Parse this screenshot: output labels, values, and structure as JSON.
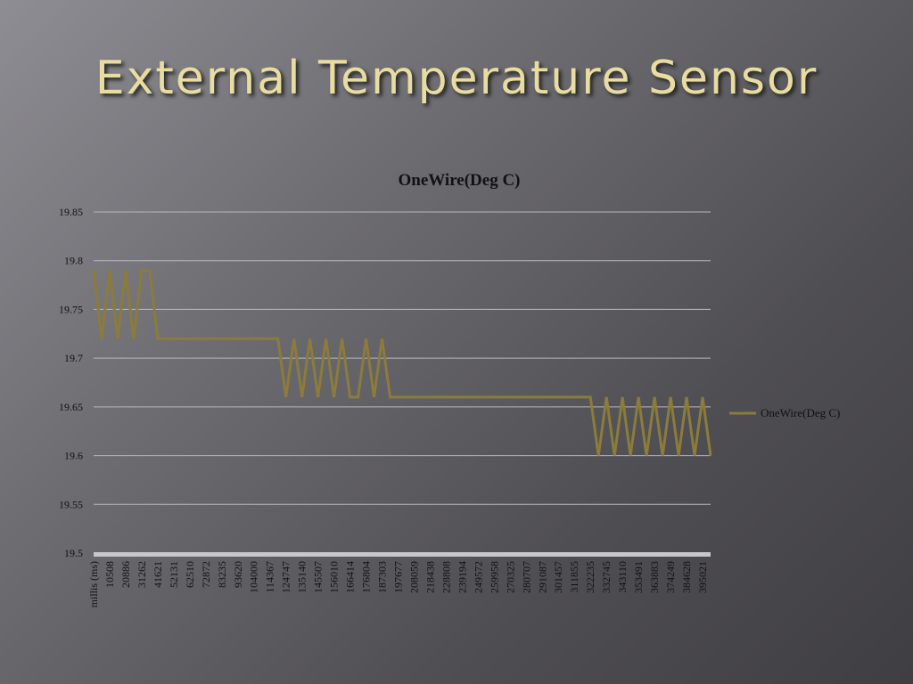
{
  "slide_title": "External Temperature Sensor",
  "chart_data": {
    "type": "line",
    "title": "OneWire(Deg C)",
    "categories": [
      "millis (ms)",
      null,
      "10508",
      null,
      "20886",
      null,
      "31262",
      null,
      "41621",
      null,
      "52131",
      null,
      "62510",
      null,
      "72872",
      null,
      "83235",
      null,
      "93620",
      null,
      "104000",
      null,
      "114367",
      null,
      "124747",
      null,
      "135140",
      null,
      "145507",
      null,
      "156010",
      null,
      "166414",
      null,
      "176804",
      null,
      "187303",
      null,
      "197677",
      null,
      "208059",
      null,
      "218438",
      null,
      "228808",
      null,
      "239194",
      null,
      "249572",
      null,
      "259958",
      null,
      "270325",
      null,
      "280707",
      null,
      "291087",
      null,
      "301457",
      null,
      "311855",
      null,
      "322235",
      null,
      "332745",
      null,
      "343110",
      null,
      "353491",
      null,
      "363883",
      null,
      "374249",
      null,
      "384628",
      null,
      "395021",
      null
    ],
    "series": [
      {
        "name": "OneWire(Deg C)",
        "color": "#8c7b3b",
        "values": [
          19.79,
          19.72,
          19.79,
          19.72,
          19.79,
          19.72,
          19.79,
          19.79,
          19.72,
          19.72,
          19.72,
          19.72,
          19.72,
          19.72,
          19.72,
          19.72,
          19.72,
          19.72,
          19.72,
          19.72,
          19.72,
          19.72,
          19.72,
          19.72,
          19.66,
          19.72,
          19.66,
          19.72,
          19.66,
          19.72,
          19.66,
          19.72,
          19.66,
          19.66,
          19.72,
          19.66,
          19.72,
          19.66,
          19.66,
          19.66,
          19.66,
          19.66,
          19.66,
          19.66,
          19.66,
          19.66,
          19.66,
          19.66,
          19.66,
          19.66,
          19.66,
          19.66,
          19.66,
          19.66,
          19.66,
          19.66,
          19.66,
          19.66,
          19.66,
          19.66,
          19.66,
          19.66,
          19.66,
          19.6,
          19.66,
          19.6,
          19.66,
          19.6,
          19.66,
          19.6,
          19.66,
          19.6,
          19.66,
          19.6,
          19.66,
          19.6,
          19.66,
          19.6
        ]
      }
    ],
    "ylim": [
      19.5,
      19.85
    ],
    "yticks": [
      19.5,
      19.55,
      19.6,
      19.65,
      19.7,
      19.75,
      19.8,
      19.85
    ],
    "grid": true,
    "legend": "right"
  }
}
